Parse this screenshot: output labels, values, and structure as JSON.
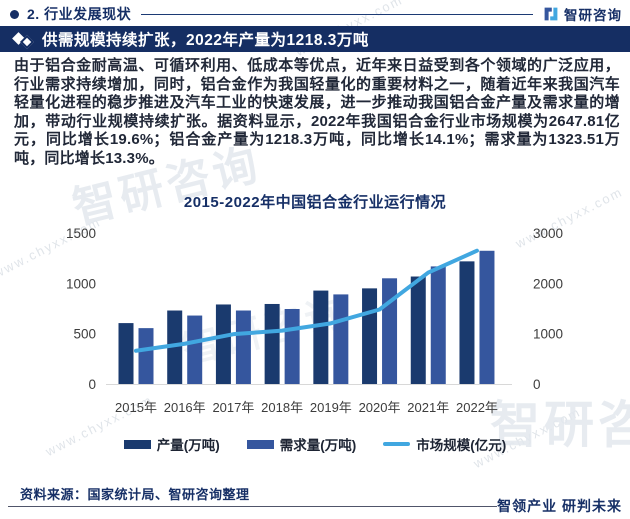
{
  "page": {
    "header": {
      "section_label": "2. 行业发展现状",
      "brand": "智研咨询"
    },
    "banner": {
      "title": "供需规模持续扩张，2022年产量为1218.3万吨"
    },
    "body_paragraph": "由于铝合金耐高温、可循环利用、低成本等优点，近年来日益受到各个领域的广泛应用，行业需求持续增加，同时，铝合金作为我国轻量化的重要材料之一，随着近年来我国汽车轻量化进程的稳步推进及汽车工业的快速发展，进一步推动我国铝合金产量及需求量的增加，带动行业规模持续扩张。据资料显示，2022年我国铝合金行业市场规模为2647.81亿元，同比增长19.6%；铝合金产量为1218.3万吨，同比增长14.1%；需求量为1323.51万吨，同比增长13.3%。",
    "footer": {
      "source": "资料来源：国家统计局、智研咨询整理",
      "slogan": "智领产业 研判未来"
    },
    "watermarks": {
      "url_text": "www.chyxx.com",
      "brand_text": "智研咨询"
    }
  },
  "chart_data": {
    "type": "bar",
    "subtype": "grouped-bar-with-line",
    "title": "2015-2022年中国铝合金行业运行情况",
    "categories": [
      "2015年",
      "2016年",
      "2017年",
      "2018年",
      "2019年",
      "2020年",
      "2021年",
      "2022年"
    ],
    "series": [
      {
        "name": "产量(万吨)",
        "type": "bar",
        "axis": "left",
        "color": "#1a3a6e",
        "values": [
          605,
          730,
          790,
          795,
          928,
          950,
          1067.7,
          1218.3
        ]
      },
      {
        "name": "需求量(万吨)",
        "type": "bar",
        "axis": "left",
        "color": "#35569e",
        "values": [
          555,
          680,
          730,
          745,
          890,
          1050,
          1168.1,
          1323.51
        ]
      },
      {
        "name": "市场规模(亿元)",
        "type": "line",
        "axis": "right",
        "color": "#41a7e0",
        "values": [
          660,
          800,
          990,
          1060,
          1205,
          1480,
          2213.9,
          2647.81
        ]
      }
    ],
    "left_axis": {
      "min": 0,
      "max": 1500,
      "ticks": [
        0,
        500,
        1000,
        1500
      ]
    },
    "right_axis": {
      "min": 0,
      "max": 3000,
      "ticks": [
        0,
        1000,
        2000,
        3000
      ]
    },
    "grid": false,
    "legend_position": "bottom"
  },
  "colors": {
    "navy": "#152e63",
    "bar_dark": "#1a3a6e",
    "bar_medium": "#35569e",
    "line_blue": "#41a7e0",
    "axis_text": "#3d3d3d",
    "body_text": "#212838"
  }
}
